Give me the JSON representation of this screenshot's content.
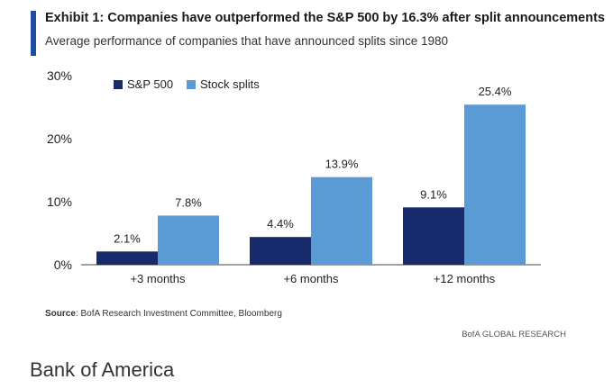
{
  "header": {
    "title": "Exhibit 1: Companies have outperformed the S&P 500 by 16.3% after split announcements",
    "subtitle": "Average performance of companies that have announced splits since 1980"
  },
  "chart_data": {
    "type": "bar",
    "title": "Exhibit 1: Companies have outperformed the S&P 500 by 16.3% after split announcements",
    "subtitle": "Average performance of companies that have announced splits since 1980",
    "categories": [
      "+3 months",
      "+6 months",
      "+12 months"
    ],
    "series": [
      {
        "name": "S&P 500",
        "values": [
          2.1,
          4.4,
          9.1
        ],
        "labels": [
          "2.1%",
          "4.4%",
          "9.1%"
        ],
        "color": "#172a6b"
      },
      {
        "name": "Stock splits",
        "values": [
          7.8,
          13.9,
          25.4
        ],
        "labels": [
          "7.8%",
          "13.9%",
          "25.4%"
        ],
        "color": "#5b9bd5"
      }
    ],
    "yticks": [
      0,
      10,
      20,
      30
    ],
    "ytick_labels": [
      "0%",
      "10%",
      "20%",
      "30%"
    ],
    "ylim": [
      0,
      30
    ],
    "xlabel": "",
    "ylabel": "",
    "grid": false,
    "legend": "top-left"
  },
  "source": {
    "label": "Source",
    "text": ": BofA Research Investment Committee, Bloomberg"
  },
  "footer": {
    "research": "BofA GLOBAL RESEARCH",
    "brand": "Bank of America"
  },
  "colors": {
    "accent": "#1f4ea1",
    "sp500": "#172a6b",
    "splits": "#5b9bd5"
  }
}
